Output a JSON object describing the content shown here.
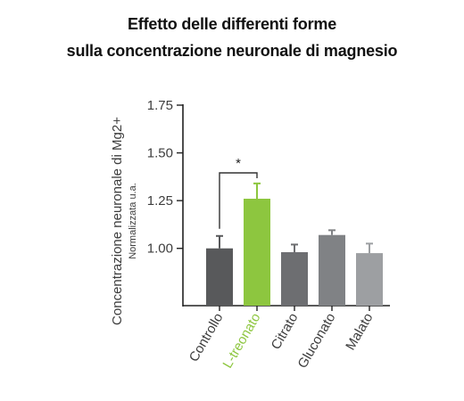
{
  "title": {
    "line1": "Effetto delle differenti forme",
    "line2": "sulla concentrazione neuronale di magnesio"
  },
  "chart_data": {
    "type": "bar",
    "categories": [
      "Controllo",
      "L-treonato",
      "Citrato",
      "Gluconato",
      "Malato"
    ],
    "values": [
      1.0,
      1.26,
      0.98,
      1.07,
      0.975
    ],
    "errors": [
      0.065,
      0.08,
      0.04,
      0.025,
      0.05
    ],
    "colors": [
      "#58595b",
      "#8dc63f",
      "#6d6e71",
      "#808285",
      "#9d9fa2"
    ],
    "label_colors": [
      "#3d3d3d",
      "#8dc63f",
      "#3d3d3d",
      "#3d3d3d",
      "#3d3d3d"
    ],
    "ylabel": "Concentrazione neuronale di Mg2+",
    "ylabel_sub": "Normalizzata u.a.",
    "yticks": [
      "1.00",
      "1.25",
      "1.50",
      "1.75"
    ],
    "ylim": [
      0.7,
      1.75
    ],
    "annotation": {
      "label": "*",
      "between": [
        "Controllo",
        "L-treonato"
      ]
    },
    "grid": false,
    "legend": "none"
  }
}
